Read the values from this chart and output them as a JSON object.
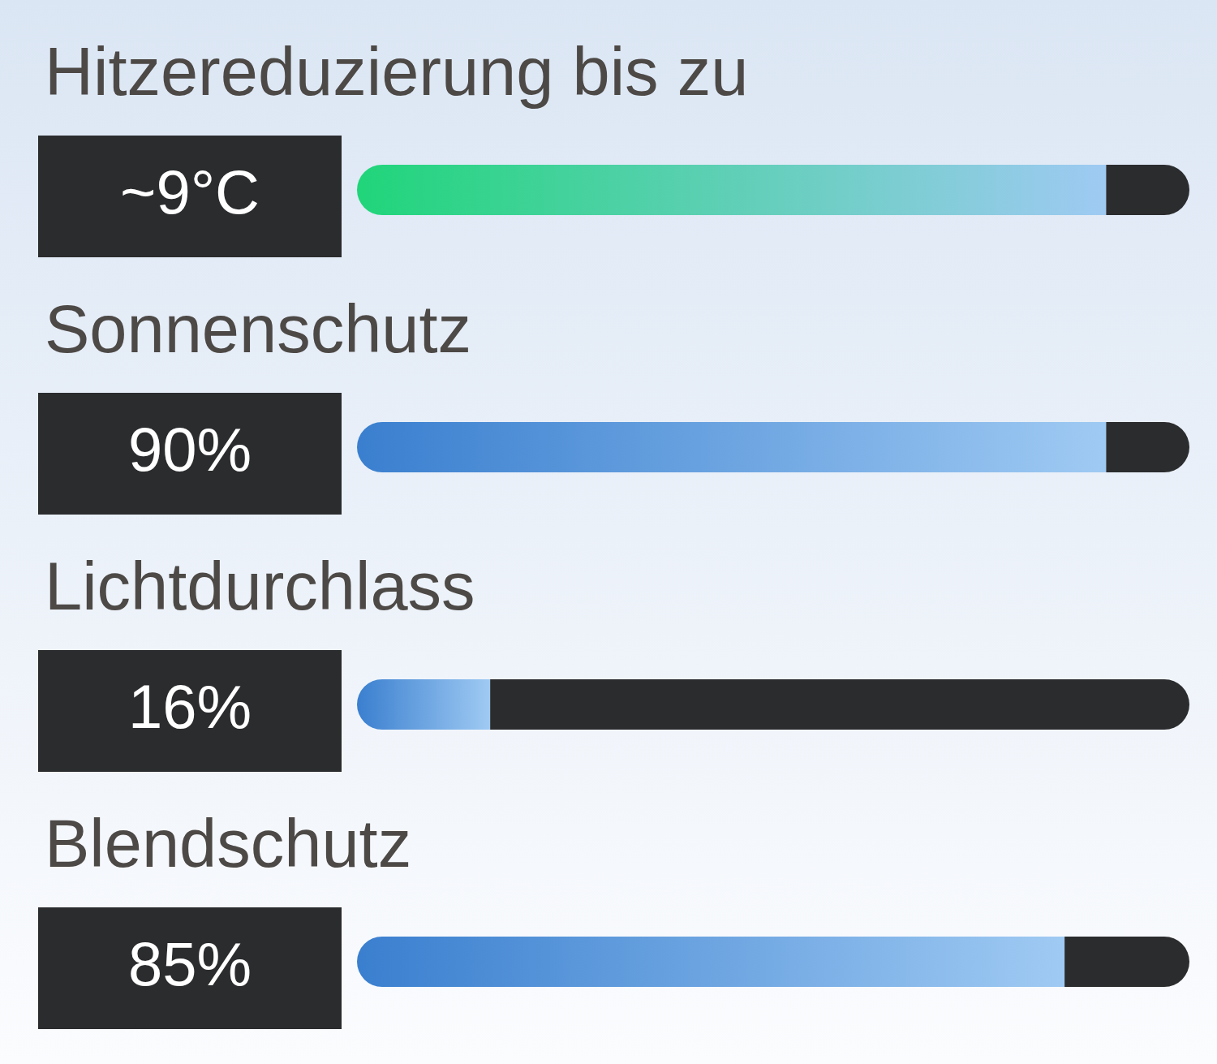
{
  "chart_data": [
    {
      "type": "bar",
      "orientation": "horizontal",
      "stacked": true,
      "categories": [
        "Hitzereduzierung bis zu"
      ],
      "series": [
        {
          "color": "#20d57a",
          "values": [
            9
          ],
          "value_labels": [
            "~9°C"
          ]
        },
        {
          "color": "#2b2c2e",
          "values": [
            1
          ]
        }
      ],
      "xlim": [
        0,
        10
      ],
      "tick_labels": "y"
    },
    {
      "type": "bar",
      "orientation": "horizontal",
      "stacked": true,
      "categories": [
        "Sonnenschutz",
        "Lichtdurchlass",
        "Blendschutz"
      ],
      "series": [
        {
          "color": "#3a7fcf",
          "values": [
            90,
            16,
            85
          ],
          "value_labels": [
            "90%",
            "16%",
            "85%"
          ]
        },
        {
          "color": "#2b2c2e",
          "values": [
            10,
            84,
            15
          ]
        }
      ],
      "xlim": [
        0,
        100
      ],
      "tick_labels": "y"
    }
  ]
}
